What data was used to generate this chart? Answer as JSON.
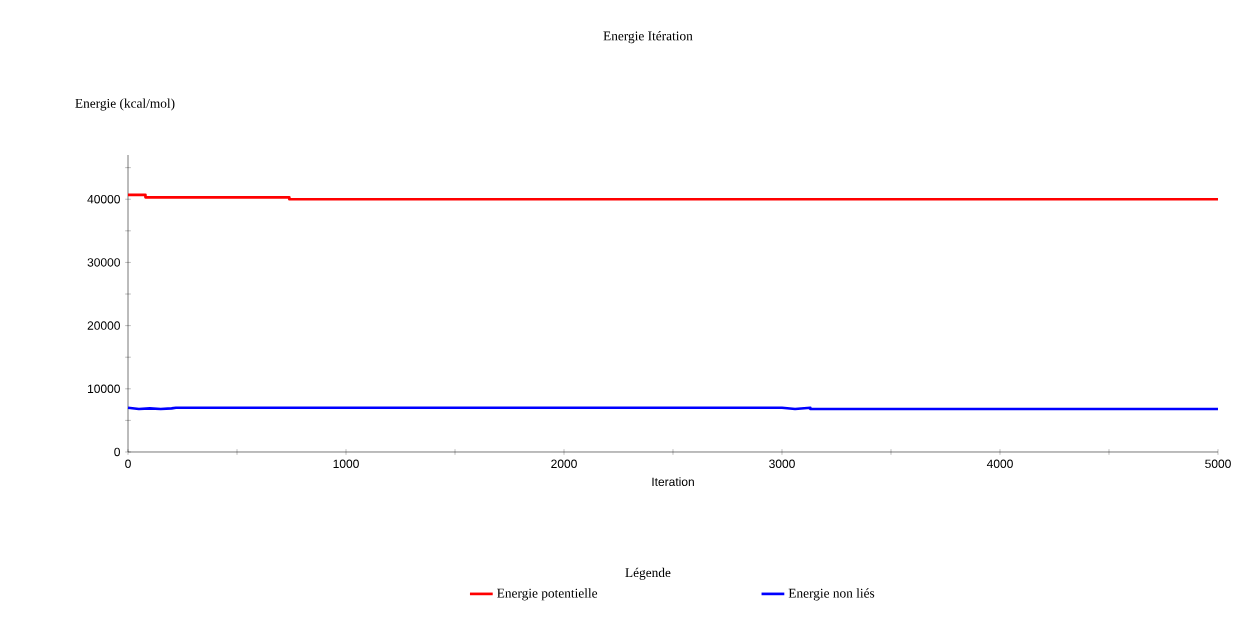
{
  "chart_data": {
    "type": "line",
    "title": "Energie Itération",
    "xlabel": "Iteration",
    "ylabel": "Energie (kcal/mol)",
    "legend_title": "Légende",
    "series": [
      {
        "name": "Energie potentielle",
        "color": "#ff0000",
        "x": [
          0,
          80,
          80,
          740,
          740,
          5000
        ],
        "values": [
          40700,
          40700,
          40300,
          40300,
          40000,
          40000
        ]
      },
      {
        "name": "Energie non liés",
        "color": "#0000ff",
        "x": [
          0,
          50,
          100,
          150,
          200,
          220,
          3000,
          3060,
          3130,
          3130,
          5000
        ],
        "values": [
          7000,
          6800,
          6900,
          6800,
          6900,
          7000,
          7000,
          6800,
          7000,
          6800,
          6800
        ]
      }
    ],
    "xlim": [
      0,
      5000
    ],
    "ylim": [
      0,
      47000
    ],
    "xticks": [
      0,
      {
        "value": 500,
        "label": null
      },
      1000,
      {
        "value": 1500,
        "label": null
      },
      2000,
      {
        "value": 2500,
        "label": null
      },
      3000,
      {
        "value": 3500,
        "label": null
      },
      4000,
      {
        "value": 4500,
        "label": null
      },
      5000
    ],
    "yticks": [
      0,
      {
        "value": 5000,
        "label": null
      },
      10000,
      {
        "value": 15000,
        "label": null
      },
      20000,
      {
        "value": 25000,
        "label": null
      },
      30000,
      {
        "value": 35000,
        "label": null
      },
      40000,
      {
        "value": 45000,
        "label": null
      }
    ],
    "grid": false,
    "legend": "bottom",
    "line_style": "solid"
  }
}
